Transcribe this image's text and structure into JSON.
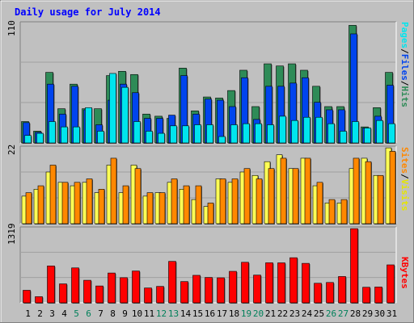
{
  "chart_data": [
    {
      "type": "bar",
      "title": "Daily usage for July 2014",
      "max_label": "110",
      "categories": [
        "1",
        "2",
        "3",
        "4",
        "5",
        "6",
        "7",
        "8",
        "9",
        "10",
        "11",
        "12",
        "13",
        "14",
        "15",
        "16",
        "17",
        "18",
        "19",
        "20",
        "21",
        "22",
        "23",
        "24",
        "25",
        "26",
        "27",
        "28",
        "29",
        "30",
        "31"
      ],
      "weekend_days": [
        "5",
        "6",
        "12",
        "13",
        "19",
        "20",
        "26",
        "27"
      ],
      "legend": [
        "Pages",
        "Files",
        "Hits"
      ],
      "series": [
        {
          "name": "Hits",
          "color": "#2e8b57",
          "values": [
            20,
            11,
            66,
            32,
            55,
            32,
            32,
            63,
            67,
            64,
            27,
            25,
            23,
            70,
            30,
            43,
            42,
            49,
            68,
            34,
            74,
            72,
            74,
            68,
            53,
            34,
            34,
            110,
            15,
            33,
            66
          ]
        },
        {
          "name": "Files",
          "color": "#0044ee",
          "values": [
            19,
            10,
            55,
            27,
            53,
            31,
            17,
            40,
            55,
            47,
            23,
            23,
            26,
            63,
            27,
            41,
            40,
            34,
            61,
            22,
            53,
            53,
            56,
            61,
            38,
            31,
            31,
            102,
            14,
            25,
            54
          ]
        },
        {
          "name": "Pages",
          "color": "#00e5ee",
          "values": [
            7,
            9,
            20,
            15,
            15,
            33,
            11,
            65,
            52,
            20,
            11,
            9,
            16,
            16,
            17,
            17,
            6,
            17,
            18,
            18,
            17,
            25,
            21,
            24,
            24,
            18,
            11,
            20,
            14,
            21,
            18
          ]
        }
      ]
    },
    {
      "type": "bar",
      "max_label": "22",
      "categories": [
        "1",
        "2",
        "3",
        "4",
        "5",
        "6",
        "7",
        "8",
        "9",
        "10",
        "11",
        "12",
        "13",
        "14",
        "15",
        "16",
        "17",
        "18",
        "19",
        "20",
        "21",
        "22",
        "23",
        "24",
        "25",
        "26",
        "27",
        "28",
        "29",
        "30",
        "31"
      ],
      "legend": [
        "Sites",
        "Visits"
      ],
      "series": [
        {
          "name": "Visits",
          "color": "#ffff55",
          "values": [
            8,
            10,
            15,
            12,
            11,
            12,
            9,
            17,
            9,
            17,
            8,
            9,
            12,
            10,
            7,
            5,
            13,
            12,
            15,
            14,
            18,
            20,
            16,
            19,
            11,
            6,
            6,
            16,
            19,
            14,
            22
          ]
        },
        {
          "name": "Sites",
          "color": "#ff8800",
          "values": [
            9,
            11,
            17,
            12,
            12,
            13,
            10,
            19,
            11,
            16,
            9,
            9,
            13,
            11,
            11,
            6,
            13,
            13,
            16,
            13,
            16,
            19,
            16,
            19,
            12,
            7,
            7,
            19,
            18,
            14,
            21
          ]
        }
      ]
    },
    {
      "type": "bar",
      "max_label": "1319",
      "categories": [
        "1",
        "2",
        "3",
        "4",
        "5",
        "6",
        "7",
        "8",
        "9",
        "10",
        "11",
        "12",
        "13",
        "14",
        "15",
        "16",
        "17",
        "18",
        "19",
        "20",
        "21",
        "22",
        "23",
        "24",
        "25",
        "26",
        "27",
        "28",
        "29",
        "30",
        "31"
      ],
      "legend": [
        "KBytes"
      ],
      "series": [
        {
          "name": "KBytes",
          "color": "#ff0000",
          "values": [
            223,
            109,
            656,
            337,
            621,
            401,
            300,
            530,
            447,
            566,
            264,
            292,
            737,
            378,
            489,
            451,
            445,
            560,
            721,
            493,
            712,
            711,
            802,
            702,
            348,
            362,
            468,
            1319,
            277,
            281,
            675
          ]
        }
      ]
    }
  ],
  "colors": {
    "background": "#c0c0c0",
    "plot_background": "#c0c0c0",
    "title": "#0000ff",
    "weekend_label": "#00805a",
    "weekday_label": "#000000",
    "grid": "#a0a0a0"
  }
}
